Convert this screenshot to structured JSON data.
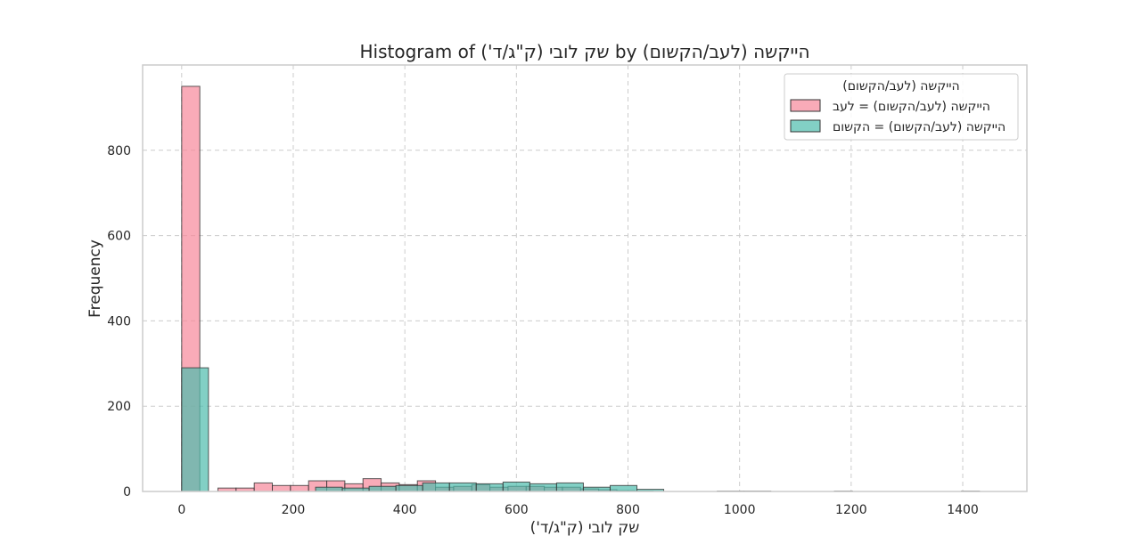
{
  "chart_data": {
    "type": "bar",
    "title": "Histogram of שק לובי (ק\"ג/ד') by הייקשה (לעב/הקשום)",
    "xlabel": "שק לובי (ק\"ג/ד')",
    "ylabel": "Frequency",
    "xlim": [
      -70,
      1515
    ],
    "ylim": [
      0,
      1000
    ],
    "xticks": [
      0,
      200,
      400,
      600,
      800,
      1000,
      1200,
      1400
    ],
    "yticks": [
      0,
      200,
      400,
      600,
      800
    ],
    "grid": true,
    "legend": {
      "title": "הייקשה (לעב/הקשום)",
      "placement": "top-right"
    },
    "series": [
      {
        "name": "הייקשה (לעב/הקשום) = לעב",
        "color": "#f7879a",
        "bin_start": 0,
        "bin_width": 32.5,
        "values": [
          950,
          0,
          8,
          8,
          20,
          14,
          14,
          25,
          25,
          18,
          30,
          20,
          16,
          25,
          10,
          12,
          16,
          10,
          12,
          12,
          10,
          10,
          6,
          4,
          2,
          1,
          0,
          0,
          0,
          0,
          0,
          0,
          0,
          0,
          0,
          0,
          1,
          0,
          0,
          0,
          0,
          0,
          0,
          1
        ]
      },
      {
        "name": "הייקשה (לעב/הקשום) = הקשום",
        "color": "#4dbcac",
        "bin_start": 0,
        "bin_width": 48,
        "values": [
          290,
          0,
          0,
          0,
          0,
          10,
          8,
          12,
          14,
          20,
          20,
          18,
          22,
          18,
          20,
          10,
          14,
          5,
          0,
          0,
          1,
          1,
          0,
          0,
          0,
          0,
          0,
          0,
          0,
          0
        ]
      }
    ]
  }
}
